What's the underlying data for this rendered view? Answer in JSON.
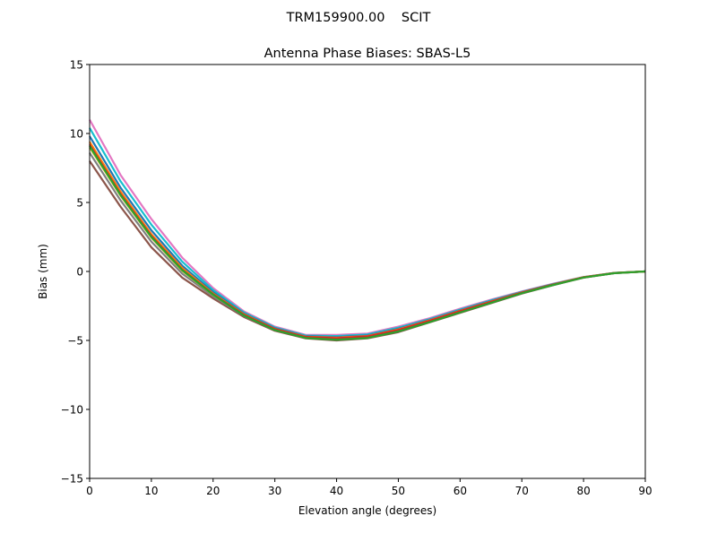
{
  "chart_data": {
    "type": "line",
    "suptitle": "TRM159900.00    SCIT",
    "title": "Antenna Phase Biases: SBAS-L5",
    "xlabel": "Elevation angle (degrees)",
    "ylabel": "Bias (mm)",
    "xlim": [
      0,
      90
    ],
    "ylim": [
      -15,
      15
    ],
    "xticks": [
      0,
      10,
      20,
      30,
      40,
      50,
      60,
      70,
      80,
      90
    ],
    "xtick_labels": [
      "0",
      "10",
      "20",
      "30",
      "40",
      "50",
      "60",
      "70",
      "80",
      "90"
    ],
    "yticks": [
      -15,
      -10,
      -5,
      0,
      5,
      10,
      15
    ],
    "ytick_labels": [
      "−15",
      "−10",
      "−5",
      "0",
      "5",
      "10",
      "15"
    ],
    "grid": false,
    "x": [
      0,
      5,
      10,
      15,
      20,
      25,
      30,
      35,
      40,
      45,
      50,
      55,
      60,
      65,
      70,
      75,
      80,
      85,
      90
    ],
    "series": [
      {
        "color": "#e377c2",
        "values": [
          11.0,
          7.0,
          3.8,
          1.0,
          -1.2,
          -2.9,
          -4.0,
          -4.6,
          -4.6,
          -4.5,
          -4.0,
          -3.4,
          -2.7,
          -2.05,
          -1.45,
          -0.9,
          -0.4,
          -0.1,
          0
        ]
      },
      {
        "color": "#8c564b",
        "values": [
          8.0,
          4.7,
          1.75,
          -0.45,
          -1.95,
          -3.3,
          -4.3,
          -4.85,
          -5.0,
          -4.85,
          -4.4,
          -3.7,
          -3.0,
          -2.3,
          -1.6,
          -1.0,
          -0.45,
          -0.12,
          0
        ]
      },
      {
        "color": "#7f7f7f",
        "values": [
          8.6,
          5.16,
          2.16,
          -0.16,
          -1.8,
          -3.22,
          -4.24,
          -4.8,
          -4.92,
          -4.78,
          -4.32,
          -3.64,
          -2.94,
          -2.25,
          -1.57,
          -0.98,
          -0.44,
          -0.12,
          0
        ]
      },
      {
        "color": "#17becf",
        "values": [
          10.4,
          6.54,
          3.39,
          0.71,
          -1.35,
          -2.98,
          -4.06,
          -4.65,
          -4.68,
          -4.57,
          -4.08,
          -3.46,
          -2.76,
          -2.1,
          -1.48,
          -0.92,
          -0.41,
          -0.1,
          0
        ]
      },
      {
        "color": "#1f77b4",
        "values": [
          9.8,
          6.08,
          2.98,
          0.42,
          -1.5,
          -3.06,
          -4.12,
          -4.7,
          -4.76,
          -4.64,
          -4.16,
          -3.52,
          -2.82,
          -2.15,
          -1.51,
          -0.94,
          -0.42,
          -0.11,
          0
        ]
      },
      {
        "color": "#ff7f0e",
        "values": [
          9.4,
          5.8,
          2.7,
          0.25,
          -1.6,
          -3.1,
          -4.16,
          -4.73,
          -4.8,
          -4.68,
          -4.2,
          -3.55,
          -2.85,
          -2.18,
          -1.52,
          -0.95,
          -0.42,
          -0.11,
          0
        ]
      },
      {
        "color": "#bcbd22",
        "values": [
          9.0,
          5.5,
          2.45,
          0.05,
          -1.7,
          -3.16,
          -4.2,
          -4.77,
          -4.88,
          -4.74,
          -4.28,
          -3.6,
          -2.9,
          -2.22,
          -1.55,
          -0.97,
          -0.43,
          -0.11,
          0
        ]
      },
      {
        "color": "#d62728",
        "values": [
          9.2,
          5.62,
          2.57,
          0.13,
          -1.65,
          -3.14,
          -4.18,
          -4.75,
          -4.84,
          -4.71,
          -4.24,
          -3.58,
          -2.88,
          -2.2,
          -1.54,
          -0.96,
          -0.43,
          -0.11,
          0
        ]
      },
      {
        "color": "#2ca02c",
        "values": [
          9.1,
          5.55,
          2.5,
          0.1,
          -1.68,
          -3.2,
          -4.25,
          -4.82,
          -4.95,
          -4.82,
          -4.35,
          -3.68,
          -2.97,
          -2.28,
          -1.58,
          -0.99,
          -0.44,
          -0.12,
          0
        ]
      }
    ]
  }
}
